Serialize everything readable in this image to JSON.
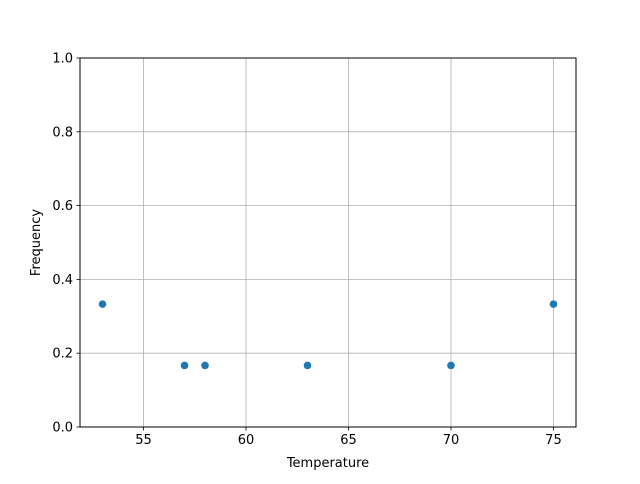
{
  "chart_data": {
    "type": "scatter",
    "title": "",
    "xlabel": "Temperature",
    "ylabel": "Frequency",
    "x": [
      53,
      57,
      58,
      63,
      70,
      75
    ],
    "y": [
      0.333,
      0.167,
      0.167,
      0.167,
      0.167,
      0.333
    ],
    "xlim": [
      51.9,
      76.1
    ],
    "ylim": [
      0.0,
      1.0
    ],
    "xticks": [
      55,
      60,
      65,
      70,
      75
    ],
    "xtick_labels": [
      "55",
      "60",
      "65",
      "70",
      "75"
    ],
    "yticks": [
      0.0,
      0.2,
      0.4,
      0.6,
      0.8,
      1.0
    ],
    "ytick_labels": [
      "0.0",
      "0.2",
      "0.4",
      "0.6",
      "0.8",
      "1.0"
    ],
    "grid": true,
    "color": "#1f77b4"
  }
}
